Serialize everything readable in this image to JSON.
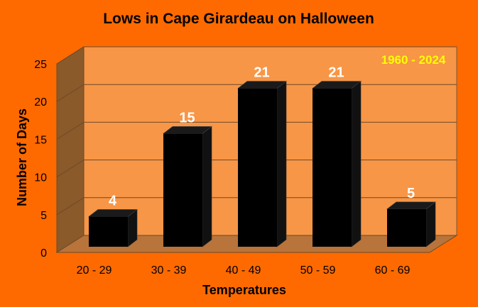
{
  "chart_data": {
    "type": "bar",
    "title": "Lows in Cape Girardeau on Halloween",
    "xlabel": "Temperatures",
    "ylabel": "Number of Days",
    "annotation": "1960 - 2024",
    "categories": [
      "20 - 29",
      "30 - 39",
      "40 - 49",
      "50 - 59",
      "60 - 69"
    ],
    "values": [
      4,
      15,
      21,
      21,
      5
    ],
    "ylim": [
      0,
      25
    ],
    "yticks": [
      0,
      5,
      10,
      15,
      20,
      25
    ],
    "grid": true,
    "style": "3d-column",
    "colors": {
      "background": "#ff6a00",
      "back_wall": "#f79646",
      "side_wall": "#8a5a2a",
      "floor": "#b8743a",
      "bar": "#000000",
      "gridline": "#6e4a2a",
      "data_label": "#ffffff",
      "annotation": "#ffff00"
    }
  }
}
